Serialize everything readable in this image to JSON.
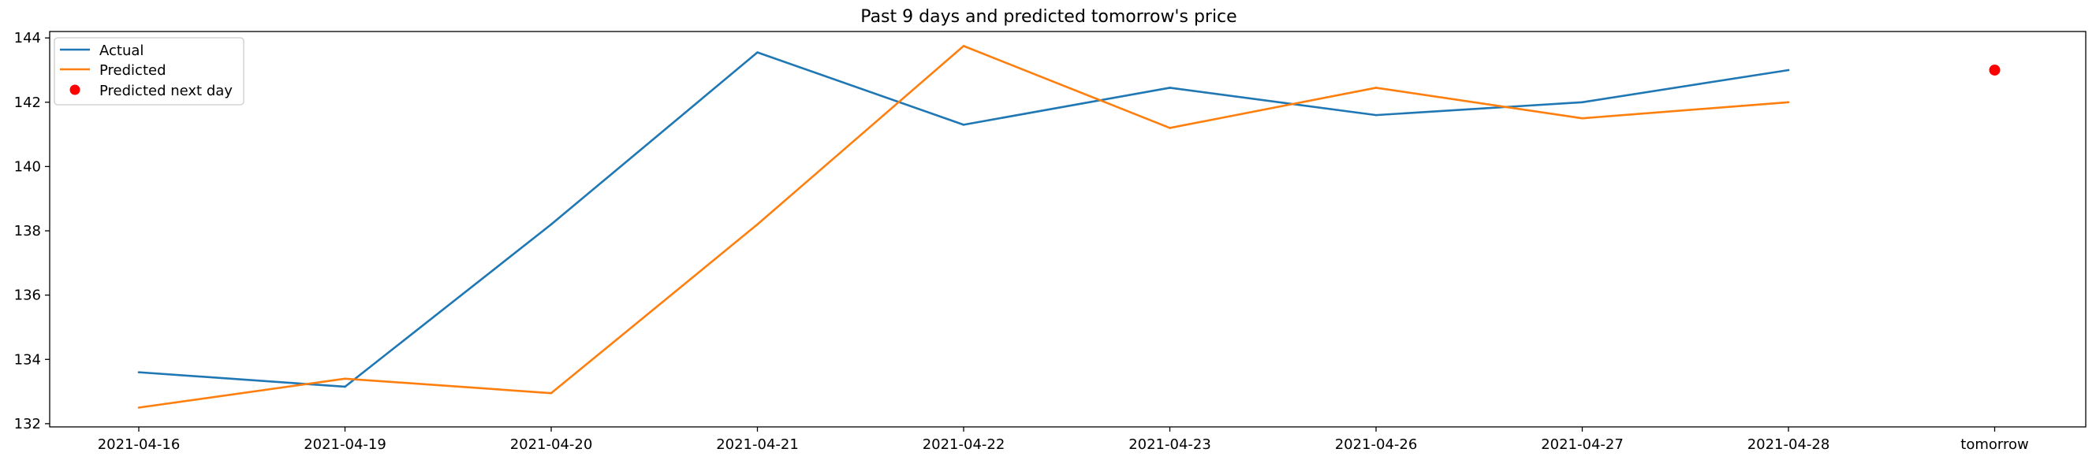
{
  "chart_data": {
    "type": "line",
    "title": "Past 9 days and predicted tomorrow's price",
    "xlabel": "",
    "ylabel": "",
    "categories": [
      "2021-04-16",
      "2021-04-19",
      "2021-04-20",
      "2021-04-21",
      "2021-04-22",
      "2021-04-23",
      "2021-04-26",
      "2021-04-27",
      "2021-04-28",
      "tomorrow"
    ],
    "ylim": [
      131.9,
      144.2
    ],
    "yticks": [
      132,
      134,
      136,
      138,
      140,
      142,
      144
    ],
    "grid": false,
    "legend_position": "top-left",
    "series": [
      {
        "name": "Actual",
        "mark": "line",
        "color": "#1f77b4",
        "x": [
          "2021-04-16",
          "2021-04-19",
          "2021-04-20",
          "2021-04-21",
          "2021-04-22",
          "2021-04-23",
          "2021-04-26",
          "2021-04-27",
          "2021-04-28"
        ],
        "values": [
          133.6,
          133.15,
          138.2,
          143.55,
          141.3,
          142.45,
          141.6,
          142.0,
          143.0
        ]
      },
      {
        "name": "Predicted",
        "mark": "line",
        "color": "#ff7f0e",
        "x": [
          "2021-04-16",
          "2021-04-19",
          "2021-04-20",
          "2021-04-21",
          "2021-04-22",
          "2021-04-23",
          "2021-04-26",
          "2021-04-27",
          "2021-04-28"
        ],
        "values": [
          132.5,
          133.4,
          132.95,
          138.2,
          143.75,
          141.2,
          142.45,
          141.5,
          142.0
        ]
      },
      {
        "name": "Predicted next day",
        "mark": "point",
        "color": "#ff0000",
        "x": [
          "tomorrow"
        ],
        "values": [
          143.0
        ]
      }
    ]
  }
}
